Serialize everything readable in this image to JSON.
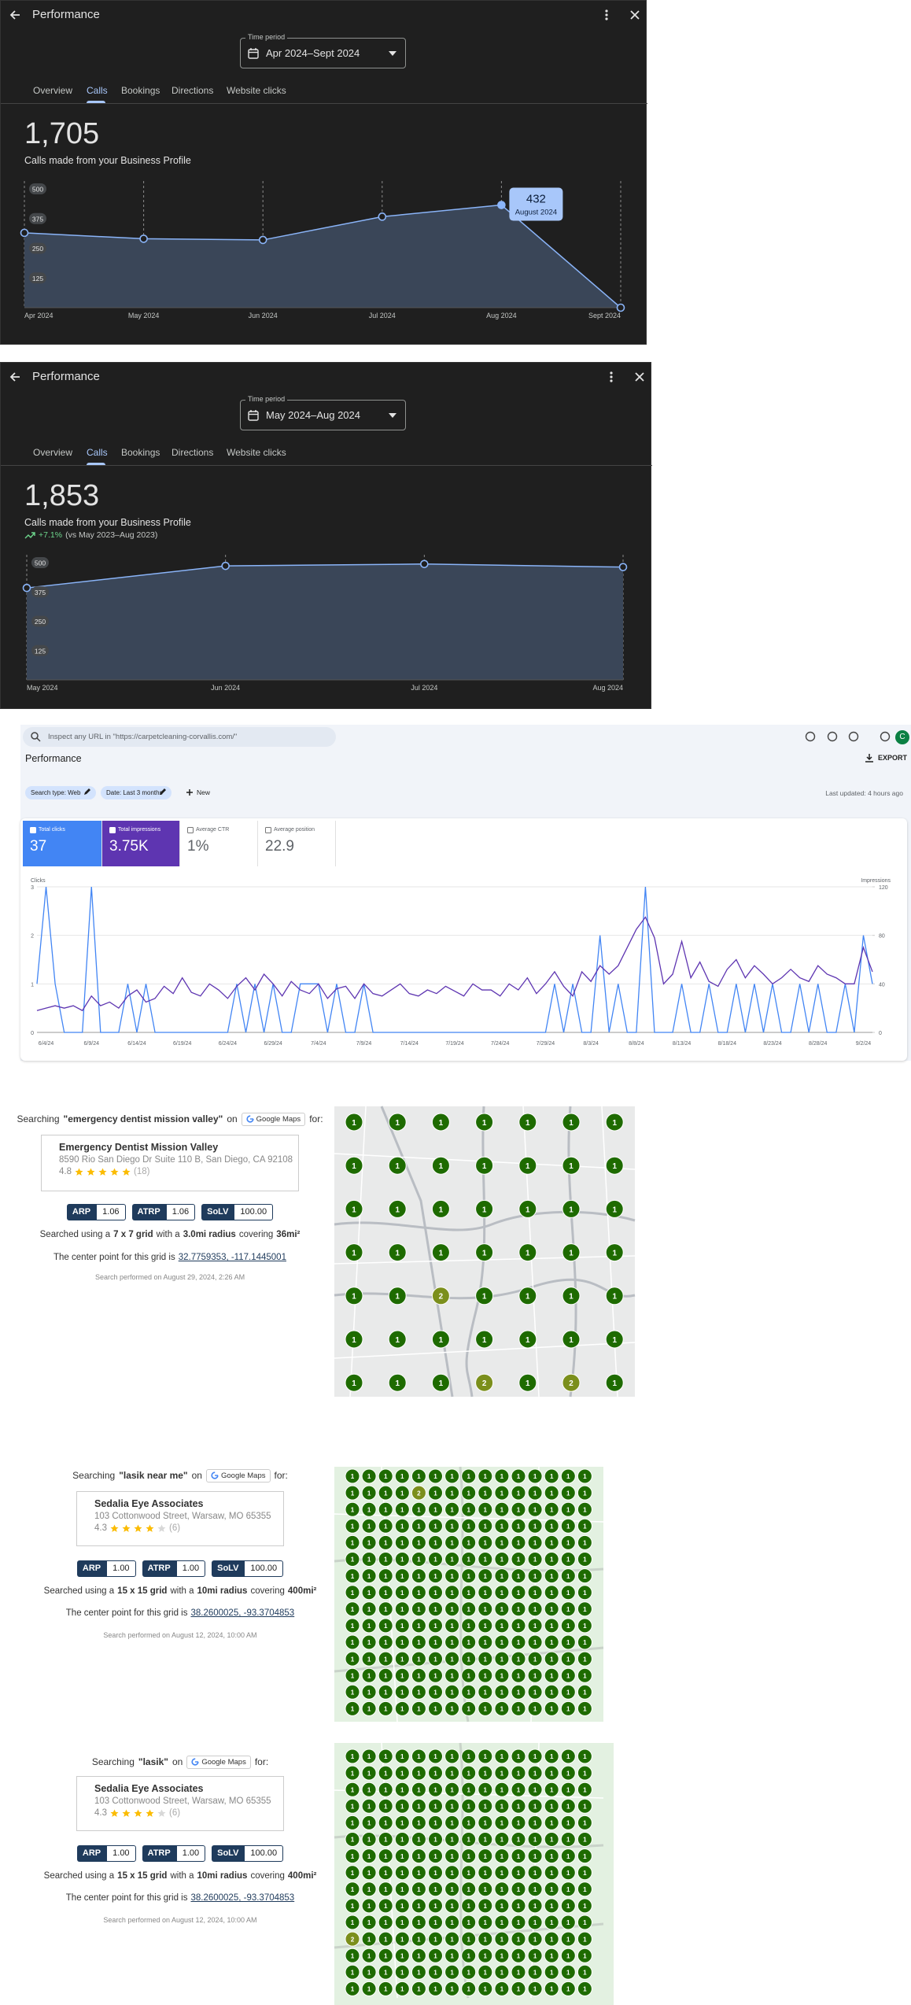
{
  "profile_panels": [
    {
      "header_title": "Performance",
      "time_period_label": "Time period",
      "time_period": "Apr 2024–Sept 2024",
      "tabs": [
        "Overview",
        "Calls",
        "Bookings",
        "Directions",
        "Website clicks"
      ],
      "total": "1,705",
      "total_caption": "Calls made from your Business Profile"
    },
    {
      "header_title": "Performance",
      "time_period_label": "Time period",
      "time_period": "May 2024–Aug 2024",
      "tabs": [
        "Overview",
        "Calls",
        "Bookings",
        "Directions",
        "Website clicks"
      ],
      "total": "1,853",
      "total_caption": "Calls made from your Business Profile",
      "change": "+7.1%",
      "change_note": "(vs May 2023–Aug 2023)"
    }
  ],
  "search_console": {
    "search_placeholder": "Inspect any URL in \"https://carpetcleaning-corvallis.com/\"",
    "avatar": "C",
    "title": "Performance",
    "export": "EXPORT",
    "filters": [
      "Search type: Web",
      "Date: Last 3 months"
    ],
    "new_filter": "New",
    "last_updated": "Last updated: 4 hours ago",
    "metrics": [
      {
        "label": "Total clicks",
        "value": "37"
      },
      {
        "label": "Total impressions",
        "value": "3.75K"
      },
      {
        "label": "Average CTR",
        "value": "1%"
      },
      {
        "label": "Average position",
        "value": "22.9"
      }
    ]
  },
  "grid_reports": [
    {
      "query_prefix": "Searching",
      "query": "\"emergency dentist mission valley\"",
      "on": "on",
      "source": "Google Maps",
      "for": "for:",
      "business": "Emergency Dentist Mission Valley",
      "address": "8590 Rio San Diego Dr Suite 110 B, San Diego, CA 92108",
      "rating": "4.8",
      "reviews": "(18)",
      "metrics": [
        {
          "label": "ARP",
          "value": "1.06"
        },
        {
          "label": "ATRP",
          "value": "1.06"
        },
        {
          "label": "SoLV",
          "value": "100.00"
        }
      ],
      "grid_text": [
        "Searched using a",
        "7 x 7 grid",
        "with a",
        "3.0mi radius",
        "covering",
        "36mi²"
      ],
      "center_text": "The center point for this grid is",
      "center": "32.7759353, -117.1445001",
      "performed": "Search performed on August 29, 2024, 2:26 AM",
      "grid": [
        [
          1,
          1,
          1,
          1,
          1,
          1,
          1
        ],
        [
          1,
          1,
          1,
          1,
          1,
          1,
          1
        ],
        [
          1,
          1,
          1,
          1,
          1,
          1,
          1
        ],
        [
          1,
          1,
          1,
          1,
          1,
          1,
          1
        ],
        [
          1,
          1,
          2,
          1,
          1,
          1,
          1
        ],
        [
          1,
          1,
          1,
          1,
          1,
          1,
          1
        ],
        [
          1,
          1,
          1,
          2,
          1,
          2,
          1
        ]
      ]
    },
    {
      "query_prefix": "Searching",
      "query": "\"lasik near me\"",
      "on": "on",
      "source": "Google Maps",
      "for": "for:",
      "business": "Sedalia Eye Associates",
      "address": "103 Cottonwood Street, Warsaw, MO 65355",
      "rating": "4.3",
      "reviews": "(6)",
      "metrics": [
        {
          "label": "ARP",
          "value": "1.00"
        },
        {
          "label": "ATRP",
          "value": "1.00"
        },
        {
          "label": "SoLV",
          "value": "100.00"
        }
      ],
      "grid_text": [
        "Searched using a",
        "15 x 15 grid",
        "with a",
        "10mi radius",
        "covering",
        "400mi²"
      ],
      "center_text": "The center point for this grid is",
      "center": "38.2600025, -93.3704853",
      "performed": "Search performed on August 12, 2024, 10:00 AM",
      "grid": [
        [
          1,
          1,
          1,
          1,
          1,
          1,
          1,
          1,
          1,
          1,
          1,
          1,
          1,
          1,
          1
        ],
        [
          1,
          1,
          1,
          1,
          2,
          1,
          1,
          1,
          1,
          1,
          1,
          1,
          1,
          1,
          1
        ],
        [
          1,
          1,
          1,
          1,
          1,
          1,
          1,
          1,
          1,
          1,
          1,
          1,
          1,
          1,
          1
        ],
        [
          1,
          1,
          1,
          1,
          1,
          1,
          1,
          1,
          1,
          1,
          1,
          1,
          1,
          1,
          1
        ],
        [
          1,
          1,
          1,
          1,
          1,
          1,
          1,
          1,
          1,
          1,
          1,
          1,
          1,
          1,
          1
        ],
        [
          1,
          1,
          1,
          1,
          1,
          1,
          1,
          1,
          1,
          1,
          1,
          1,
          1,
          1,
          1
        ],
        [
          1,
          1,
          1,
          1,
          1,
          1,
          1,
          1,
          1,
          1,
          1,
          1,
          1,
          1,
          1
        ],
        [
          1,
          1,
          1,
          1,
          1,
          1,
          1,
          1,
          1,
          1,
          1,
          1,
          1,
          1,
          1
        ],
        [
          1,
          1,
          1,
          1,
          1,
          1,
          1,
          1,
          1,
          1,
          1,
          1,
          1,
          1,
          1
        ],
        [
          1,
          1,
          1,
          1,
          1,
          1,
          1,
          1,
          1,
          1,
          1,
          1,
          1,
          1,
          1
        ],
        [
          1,
          1,
          1,
          1,
          1,
          1,
          1,
          1,
          1,
          1,
          1,
          1,
          1,
          1,
          1
        ],
        [
          1,
          1,
          1,
          1,
          1,
          1,
          1,
          1,
          1,
          1,
          1,
          1,
          1,
          1,
          1
        ],
        [
          1,
          1,
          1,
          1,
          1,
          1,
          1,
          1,
          1,
          1,
          1,
          1,
          1,
          1,
          1
        ],
        [
          1,
          1,
          1,
          1,
          1,
          1,
          1,
          1,
          1,
          1,
          1,
          1,
          1,
          1,
          1
        ],
        [
          1,
          1,
          1,
          1,
          1,
          1,
          1,
          1,
          1,
          1,
          1,
          1,
          1,
          1,
          1
        ]
      ]
    },
    {
      "query_prefix": "Searching",
      "query": "\"lasik\"",
      "on": "on",
      "source": "Google Maps",
      "for": "for:",
      "business": "Sedalia Eye Associates",
      "address": "103 Cottonwood Street, Warsaw, MO 65355",
      "rating": "4.3",
      "reviews": "(6)",
      "metrics": [
        {
          "label": "ARP",
          "value": "1.00"
        },
        {
          "label": "ATRP",
          "value": "1.00"
        },
        {
          "label": "SoLV",
          "value": "100.00"
        }
      ],
      "grid_text": [
        "Searched using a",
        "15 x 15 grid",
        "with a",
        "10mi radius",
        "covering",
        "400mi²"
      ],
      "center_text": "The center point for this grid is",
      "center": "38.2600025, -93.3704853",
      "performed": "Search performed on August 12, 2024, 10:00 AM",
      "grid": [
        [
          1,
          1,
          1,
          1,
          1,
          1,
          1,
          1,
          1,
          1,
          1,
          1,
          1,
          1,
          1
        ],
        [
          1,
          1,
          1,
          1,
          1,
          1,
          1,
          1,
          1,
          1,
          1,
          1,
          1,
          1,
          1
        ],
        [
          1,
          1,
          1,
          1,
          1,
          1,
          1,
          1,
          1,
          1,
          1,
          1,
          1,
          1,
          1
        ],
        [
          1,
          1,
          1,
          1,
          1,
          1,
          1,
          1,
          1,
          1,
          1,
          1,
          1,
          1,
          1
        ],
        [
          1,
          1,
          1,
          1,
          1,
          1,
          1,
          1,
          1,
          1,
          1,
          1,
          1,
          1,
          1
        ],
        [
          1,
          1,
          1,
          1,
          1,
          1,
          1,
          1,
          1,
          1,
          1,
          1,
          1,
          1,
          1
        ],
        [
          1,
          1,
          1,
          1,
          1,
          1,
          1,
          1,
          1,
          1,
          1,
          1,
          1,
          1,
          1
        ],
        [
          1,
          1,
          1,
          1,
          1,
          1,
          1,
          1,
          1,
          1,
          1,
          1,
          1,
          1,
          1
        ],
        [
          1,
          1,
          1,
          1,
          1,
          1,
          1,
          1,
          1,
          1,
          1,
          1,
          1,
          1,
          1
        ],
        [
          1,
          1,
          1,
          1,
          1,
          1,
          1,
          1,
          1,
          1,
          1,
          1,
          1,
          1,
          1
        ],
        [
          1,
          1,
          1,
          1,
          1,
          1,
          1,
          1,
          1,
          1,
          1,
          1,
          1,
          1,
          1
        ],
        [
          2,
          1,
          1,
          1,
          1,
          1,
          1,
          1,
          1,
          1,
          1,
          1,
          1,
          1,
          1
        ],
        [
          1,
          1,
          1,
          1,
          1,
          1,
          1,
          1,
          1,
          1,
          1,
          1,
          1,
          1,
          1
        ],
        [
          1,
          1,
          1,
          1,
          1,
          1,
          1,
          1,
          1,
          1,
          1,
          1,
          1,
          1,
          1
        ],
        [
          1,
          1,
          1,
          1,
          1,
          1,
          1,
          1,
          1,
          1,
          1,
          1,
          1,
          1,
          1
        ]
      ]
    }
  ],
  "chart_data": [
    {
      "type": "area",
      "categories": [
        "Apr 2024",
        "May 2024",
        "Jun 2024",
        "Jul 2024",
        "Aug 2024",
        "Sept 2024"
      ],
      "values": [
        315,
        290,
        285,
        383,
        432,
        0
      ],
      "color": "#8ab4f8",
      "ylim": [
        0,
        500
      ],
      "yticks": [
        125,
        250,
        375,
        500
      ],
      "tooltip_label": "August 2024"
    },
    {
      "type": "area",
      "categories": [
        "May 2024",
        "Jun 2024",
        "Jul 2024",
        "Aug 2024"
      ],
      "values": [
        392,
        486,
        494,
        481
      ],
      "color": "#8ab4f8",
      "ylim": [
        0,
        500
      ],
      "yticks": [
        125,
        250,
        375,
        500
      ]
    },
    {
      "type": "line",
      "grid": true,
      "categories": [
        null,
        "6/4/24",
        null,
        null,
        null,
        null,
        "6/9/24",
        null,
        null,
        null,
        null,
        "6/14/24",
        null,
        null,
        null,
        null,
        "6/19/24",
        null,
        null,
        null,
        null,
        "6/24/24",
        null,
        null,
        null,
        null,
        "6/29/24",
        null,
        null,
        null,
        null,
        "7/4/24",
        null,
        null,
        null,
        null,
        "7/9/24",
        null,
        null,
        null,
        null,
        "7/14/24",
        null,
        null,
        null,
        null,
        "7/19/24",
        null,
        null,
        null,
        null,
        "7/24/24",
        null,
        null,
        null,
        null,
        "7/29/24",
        null,
        null,
        null,
        null,
        "8/3/24",
        null,
        null,
        null,
        null,
        "8/8/24",
        null,
        null,
        null,
        null,
        "8/13/24",
        null,
        null,
        null,
        null,
        "8/18/24",
        null,
        null,
        null,
        null,
        "8/23/24",
        null,
        null,
        null,
        null,
        "8/28/24",
        null,
        null,
        null,
        null,
        "9/2/24",
        null
      ],
      "series": [
        {
          "name": "Clicks",
          "color": "#4285f4",
          "values": [
            1,
            3,
            1,
            0,
            0,
            0,
            3,
            0,
            0,
            0,
            1,
            0,
            1,
            0,
            0,
            0,
            0,
            0,
            0,
            0,
            0,
            0,
            1,
            0,
            1,
            0,
            1,
            0,
            0,
            1,
            1,
            1,
            0,
            1,
            0,
            0,
            1,
            0,
            0,
            0,
            0,
            0,
            0,
            0,
            0,
            0,
            0,
            0,
            0,
            0,
            0,
            0,
            0,
            0,
            0,
            0,
            0,
            1,
            0,
            1,
            0,
            0,
            2,
            0,
            1,
            0,
            0,
            3,
            0,
            0,
            0,
            1,
            0,
            0,
            1,
            0,
            0,
            1,
            0,
            1,
            0,
            1,
            0,
            0,
            1,
            0,
            1,
            0,
            0,
            1,
            0,
            2,
            1
          ]
        },
        {
          "name": "Impressions",
          "color": "#5e35b1",
          "axis": "y2",
          "values": [
            18,
            20,
            22,
            20,
            22,
            18,
            30,
            22,
            25,
            20,
            30,
            35,
            25,
            28,
            38,
            32,
            45,
            33,
            30,
            40,
            35,
            28,
            38,
            45,
            35,
            48,
            40,
            30,
            42,
            35,
            32,
            40,
            28,
            36,
            38,
            28,
            40,
            32,
            30,
            35,
            40,
            32,
            30,
            35,
            32,
            38,
            34,
            30,
            40,
            35,
            35,
            30,
            40,
            35,
            45,
            32,
            40,
            50,
            38,
            30,
            50,
            42,
            55,
            48,
            55,
            70,
            85,
            95,
            78,
            40,
            48,
            75,
            45,
            58,
            42,
            38,
            52,
            60,
            45,
            55,
            48,
            40,
            45,
            52,
            45,
            42,
            55,
            48,
            45,
            40,
            40,
            70,
            50
          ]
        }
      ],
      "ylim": [
        0,
        3
      ],
      "yticks": [
        0,
        1,
        2,
        3
      ],
      "y2lim": [
        0,
        120
      ],
      "y2ticks": [
        0,
        40,
        80,
        120
      ]
    }
  ]
}
